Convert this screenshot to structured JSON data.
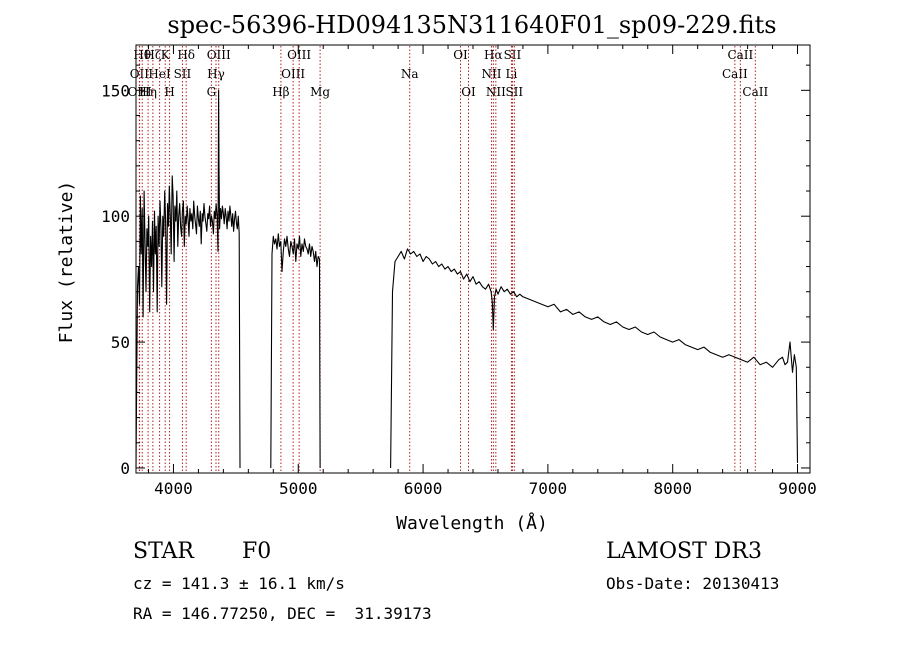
{
  "chart_data": {
    "type": "line",
    "title": "spec-56396-HD094135N311640F01_sp09-229.fits",
    "xlabel": "Wavelength (Å)",
    "ylabel": "Flux (relative)",
    "xlim": [
      3700,
      9100
    ],
    "ylim": [
      -2,
      168
    ],
    "x_ticks": [
      4000,
      5000,
      6000,
      7000,
      8000,
      9000
    ],
    "y_ticks": [
      0,
      50,
      100,
      150
    ],
    "x_tick_labels": [
      "4000",
      "5000",
      "6000",
      "7000",
      "8000",
      "9000"
    ],
    "y_tick_labels": [
      "0",
      "50",
      "100",
      "150"
    ],
    "series": [
      {
        "name": "flux",
        "segments": [
          {
            "x": [
              3700,
              3705,
              3712,
              3720,
              3728,
              3735,
              3742,
              3750,
              3757,
              3765,
              3772,
              3780,
              3787,
              3795,
              3802,
              3810,
              3817,
              3825,
              3832,
              3840,
              3848,
              3855,
              3862,
              3870,
              3877,
              3885,
              3892,
              3900,
              3907,
              3915,
              3922,
              3930,
              3937,
              3945,
              3952,
              3960,
              3967,
              3975,
              3982,
              3990,
              3997,
              4005,
              4012,
              4020,
              4027,
              4035,
              4042,
              4050,
              4057,
              4065,
              4072,
              4080,
              4087,
              4095,
              4102,
              4110,
              4117,
              4125,
              4132,
              4140,
              4147,
              4155,
              4162,
              4170,
              4177,
              4185,
              4192,
              4200,
              4207,
              4215,
              4222,
              4230,
              4237,
              4245,
              4252,
              4260,
              4267,
              4275,
              4282,
              4290,
              4297,
              4305,
              4312,
              4320,
              4327,
              4335,
              4342,
              4350,
              4357,
              4362,
              4365,
              4370,
              4377,
              4385,
              4392,
              4400,
              4407,
              4415,
              4422,
              4430,
              4437,
              4445,
              4452,
              4460,
              4467,
              4475,
              4482,
              4490,
              4497,
              4505,
              4512,
              4520,
              4527,
              4533
            ],
            "y": [
              0,
              30,
              72,
              80,
              65,
              108,
              85,
              103,
              60,
              110,
              90,
              70,
              95,
              88,
              100,
              62,
              92,
              80,
              98,
              70,
              102,
              85,
              96,
              62,
              100,
              88,
              106,
              95,
              72,
              100,
              92,
              110,
              98,
              65,
              105,
              96,
              112,
              100,
              85,
              116,
              108,
              82,
              104,
              98,
              110,
              88,
              100,
              105,
              96,
              92,
              102,
              106,
              88,
              100,
              97,
              104,
              99,
              92,
              103,
              98,
              101,
              95,
              106,
              100,
              97,
              93,
              104,
              99,
              96,
              102,
              89,
              101,
              98,
              105,
              100,
              97,
              94,
              101,
              99,
              104,
              96,
              100,
              98,
              93,
              102,
              99,
              105,
              100,
              86,
              150,
              120,
              95,
              103,
              99,
              104,
              101,
              97,
              103,
              100,
              95,
              102,
              98,
              104,
              100,
              96,
              101,
              94,
              99,
              102,
              97,
              95,
              100,
              93,
              0
            ]
          },
          {
            "x": [
              4780,
              4790,
              4800,
              4810,
              4820,
              4830,
              4840,
              4850,
              4860,
              4870,
              4880,
              4890,
              4900,
              4910,
              4920,
              4930,
              4940,
              4950,
              4960,
              4970,
              4980,
              4990,
              5000,
              5010,
              5020,
              5030,
              5040,
              5050,
              5060,
              5070,
              5080,
              5090,
              5100,
              5110,
              5120,
              5130,
              5140,
              5150,
              5160,
              5170,
              5175
            ],
            "y": [
              0,
              85,
              92,
              89,
              91,
              87,
              93,
              88,
              90,
              78,
              86,
              91,
              88,
              92,
              87,
              84,
              90,
              88,
              85,
              91,
              82,
              89,
              87,
              92,
              84,
              89,
              86,
              91,
              88,
              87,
              85,
              89,
              84,
              88,
              86,
              82,
              86,
              80,
              84,
              83,
              0
            ]
          },
          {
            "x": [
              5740,
              5755,
              5775,
              5800,
              5825,
              5850,
              5875,
              5900,
              5925,
              5950,
              5975,
              6000,
              6025,
              6050,
              6075,
              6100,
              6125,
              6150,
              6175,
              6200,
              6225,
              6250,
              6275,
              6300,
              6325,
              6350,
              6375,
              6400,
              6425,
              6450,
              6475,
              6500,
              6525,
              6545,
              6555,
              6563,
              6572,
              6585,
              6600,
              6625,
              6650,
              6675,
              6700,
              6725,
              6750,
              6775,
              6800,
              6850,
              6900,
              6950,
              7000,
              7050,
              7100,
              7150,
              7200,
              7250,
              7300,
              7350,
              7400,
              7450,
              7500,
              7550,
              7600,
              7650,
              7700,
              7750,
              7800,
              7850,
              7900,
              7950,
              8000,
              8050,
              8100,
              8150,
              8200,
              8250,
              8300,
              8350,
              8400,
              8450,
              8500,
              8550,
              8600,
              8650,
              8700,
              8750,
              8800,
              8850,
              8880,
              8900,
              8920,
              8940,
              8960,
              8975,
              8990,
              9000
            ],
            "y": [
              0,
              70,
              82,
              84,
              86,
              83,
              87,
              85,
              86,
              84,
              85,
              82,
              84,
              83,
              81,
              82,
              80,
              81,
              79,
              80,
              78,
              79,
              77,
              78,
              75,
              77,
              74,
              76,
              73,
              74,
              72,
              71,
              73,
              70,
              66,
              55,
              68,
              71,
              69,
              72,
              70,
              71,
              69,
              70,
              68,
              69,
              68,
              67,
              66,
              65,
              64,
              65,
              62,
              63,
              61,
              62,
              60,
              59,
              60,
              58,
              57,
              58,
              56,
              55,
              56,
              54,
              53,
              54,
              52,
              51,
              50,
              51,
              49,
              48,
              47,
              48,
              46,
              45,
              44,
              45,
              44,
              43,
              42,
              44,
              41,
              42,
              40,
              43,
              44,
              41,
              42,
              50,
              38,
              45,
              40,
              2
            ]
          }
        ]
      }
    ],
    "line_markers": [
      {
        "x": 3727,
        "label": "OII",
        "row": 2
      },
      {
        "x": 3729,
        "label": "OIII",
        "row": 3
      },
      {
        "x": 3750,
        "label": "Hθ",
        "row": 1
      },
      {
        "x": 3797,
        "label": "Hη",
        "row": 3
      },
      {
        "x": 3835,
        "label": "Hζ",
        "row": 1
      },
      {
        "x": 3889,
        "label": "HeI",
        "row": 2
      },
      {
        "x": 3934,
        "label": "K",
        "row": 1
      },
      {
        "x": 3969,
        "label": "H",
        "row": 3
      },
      {
        "x": 4072,
        "label": "SII",
        "row": 2
      },
      {
        "x": 4102,
        "label": "Hδ",
        "row": 1
      },
      {
        "x": 4304,
        "label": "G",
        "row": 3
      },
      {
        "x": 4341,
        "label": "Hγ",
        "row": 2
      },
      {
        "x": 4363,
        "label": "OIII",
        "row": 1
      },
      {
        "x": 4861,
        "label": "Hβ",
        "row": 3
      },
      {
        "x": 4959,
        "label": "OIII",
        "row": 2
      },
      {
        "x": 5007,
        "label": "OIII",
        "row": 1
      },
      {
        "x": 5175,
        "label": "Mg",
        "row": 3
      },
      {
        "x": 5893,
        "label": "Na",
        "row": 2
      },
      {
        "x": 6300,
        "label": "OI",
        "row": 1
      },
      {
        "x": 6364,
        "label": "OI",
        "row": 3
      },
      {
        "x": 6548,
        "label": "NII",
        "row": 2
      },
      {
        "x": 6563,
        "label": "Hα",
        "row": 1
      },
      {
        "x": 6583,
        "label": "NII",
        "row": 3
      },
      {
        "x": 6708,
        "label": "Li",
        "row": 2
      },
      {
        "x": 6716,
        "label": "SII",
        "row": 1
      },
      {
        "x": 6731,
        "label": "SII",
        "row": 3
      },
      {
        "x": 8498,
        "label": "CaII",
        "row": 2
      },
      {
        "x": 8542,
        "label": "CaII",
        "row": 1
      },
      {
        "x": 8662,
        "label": "CaII",
        "row": 3
      }
    ],
    "grid": false,
    "marker_color": "#b22222",
    "line_color": "#000000"
  },
  "footer": {
    "object_type": "STAR",
    "subclass": "F0",
    "survey": "LAMOST DR3",
    "cz": "cz = 141.3 ± 16.1 km/s",
    "obs_date": "Obs-Date: 20130413",
    "coords": "RA = 146.77250, DEC =  31.39173"
  }
}
